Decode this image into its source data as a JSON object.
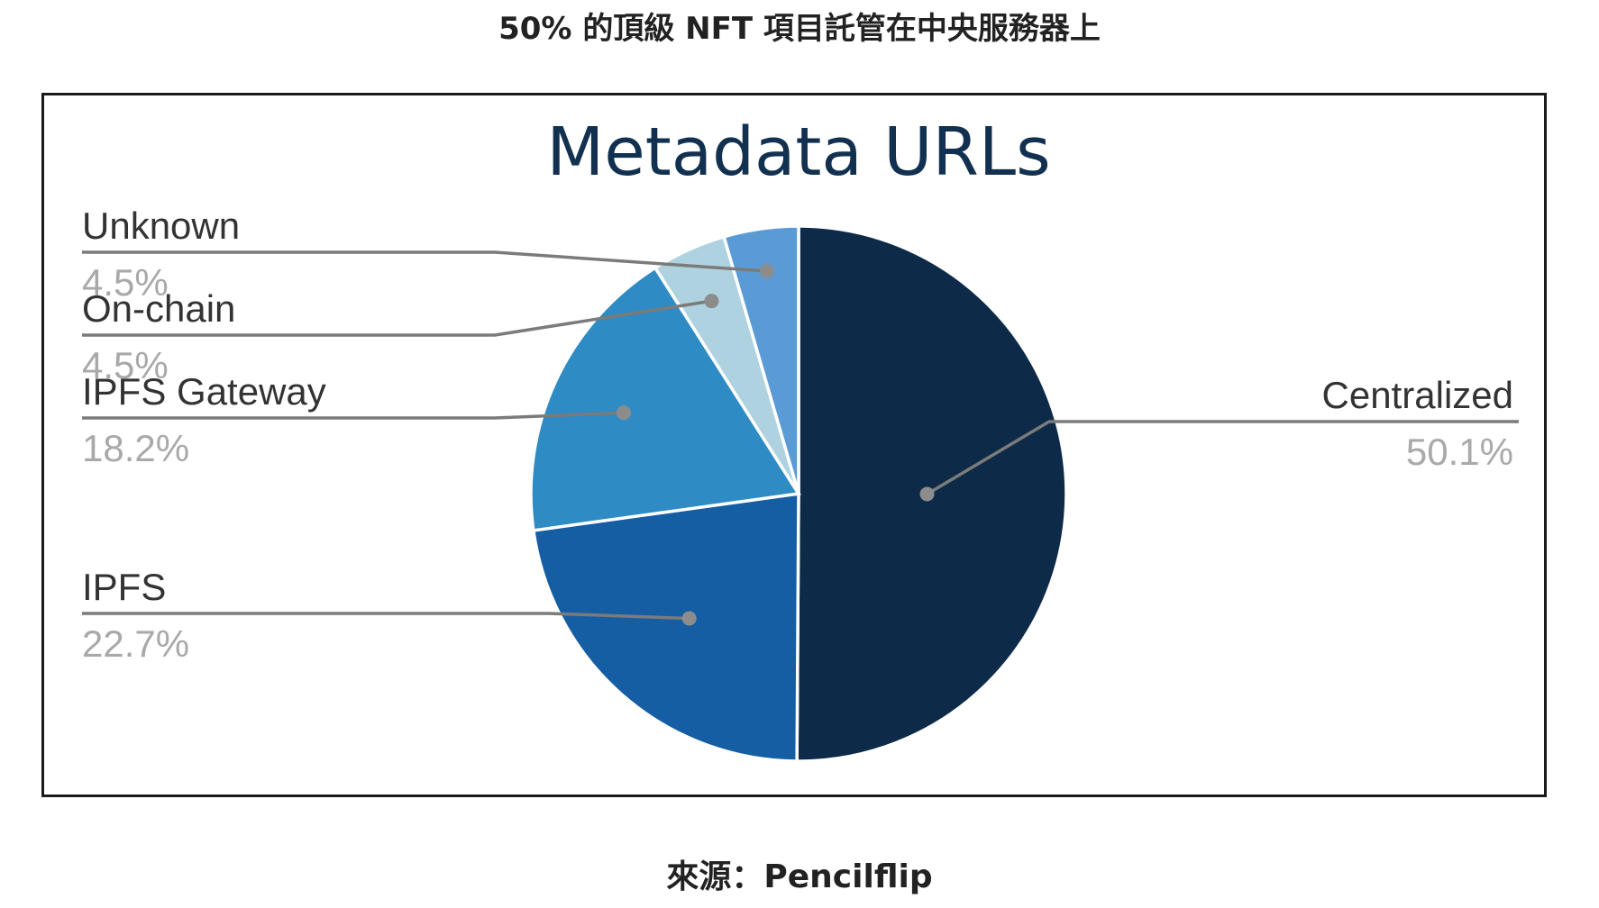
{
  "header": {
    "title": "50% 的頂級 NFT 項目託管在中央服務器上"
  },
  "footer": {
    "source": "來源：Pencilflip"
  },
  "chart_data": {
    "type": "pie",
    "title": "Metadata URLs",
    "legend": "leader-line labels",
    "slices": [
      {
        "label": "Centralized",
        "value": 50.1,
        "value_label": "50.1%",
        "color": "#0d2b48"
      },
      {
        "label": "IPFS",
        "value": 22.7,
        "value_label": "22.7%",
        "color": "#165ea3"
      },
      {
        "label": "IPFS Gateway",
        "value": 18.2,
        "value_label": "18.2%",
        "color": "#2e8bc4"
      },
      {
        "label": "On-chain",
        "value": 4.5,
        "value_label": "4.5%",
        "color": "#afd2e0"
      },
      {
        "label": "Unknown",
        "value": 4.5,
        "value_label": "4.5%",
        "color": "#5b9bd5"
      }
    ]
  }
}
